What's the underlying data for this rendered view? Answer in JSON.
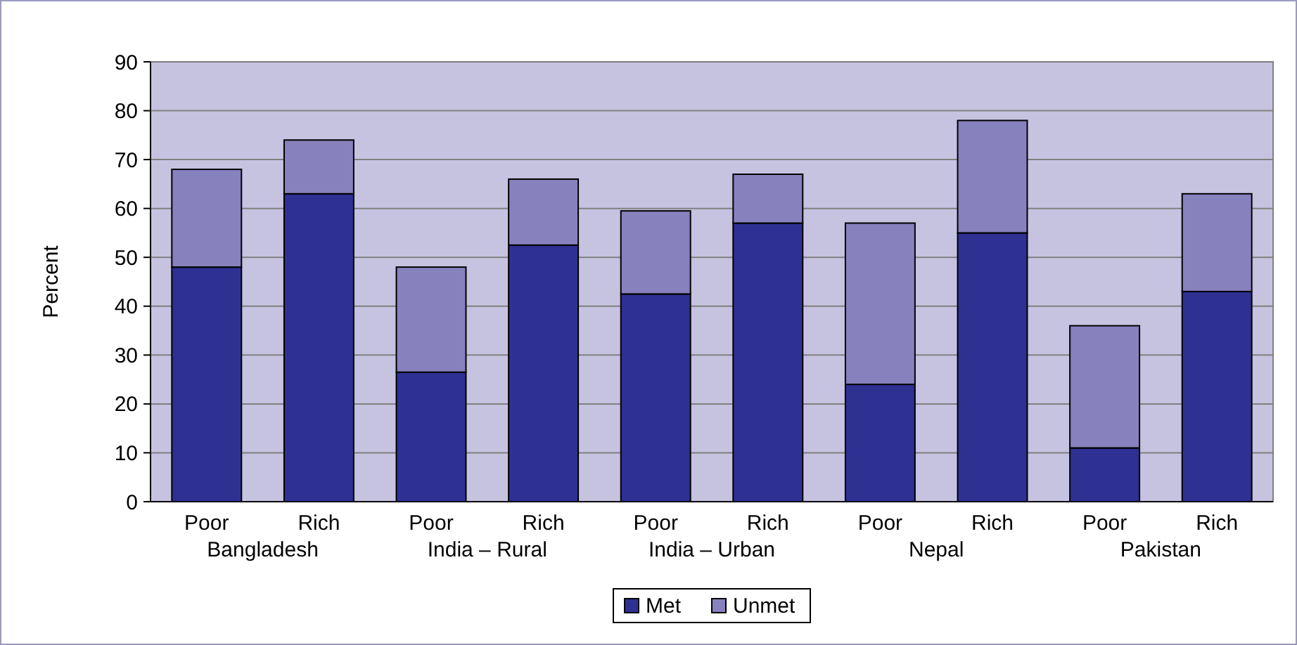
{
  "chart_data": {
    "type": "bar",
    "stacked": true,
    "ylabel": "Percent",
    "categories": [
      "Poor",
      "Rich",
      "Poor",
      "Rich",
      "Poor",
      "Rich",
      "Poor",
      "Rich",
      "Poor",
      "Rich"
    ],
    "annotations": [
      "Bangladesh",
      "India – Rural",
      "India – Urban",
      "Nepal",
      "Pakistan"
    ],
    "series": [
      {
        "name": "Met",
        "color": "#2e3192",
        "values": [
          48,
          63,
          26.5,
          52.5,
          42.5,
          57,
          24,
          55,
          11,
          43
        ]
      },
      {
        "name": "Unmet",
        "color": "#8781bd",
        "values": [
          20,
          11,
          21.5,
          13.5,
          17,
          10,
          33,
          23,
          25,
          20
        ]
      }
    ],
    "ylim": [
      0,
      90
    ],
    "yticks": [
      0,
      10,
      20,
      30,
      40,
      50,
      60,
      70,
      80,
      90
    ],
    "grid": "y",
    "legend": "bottom"
  }
}
